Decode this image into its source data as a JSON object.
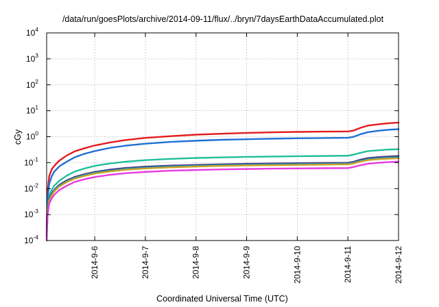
{
  "chart_data": {
    "type": "line",
    "title": "/data/run/goesPlots/archive/2014-09-11/flux/../bryn/7daysEarthDataAccumulated.plot",
    "xlabel": "Coordinated Universal Time (UTC)",
    "ylabel": "cGy",
    "y_scale": "log",
    "ylim": [
      0.0001,
      10000
    ],
    "xlim": [
      -0.95,
      6
    ],
    "y_ticks": [
      {
        "value": 0.0001,
        "base": "10",
        "exp": "-4"
      },
      {
        "value": 0.001,
        "base": "10",
        "exp": "-3"
      },
      {
        "value": 0.01,
        "base": "10",
        "exp": "-2"
      },
      {
        "value": 0.1,
        "base": "10",
        "exp": "-1"
      },
      {
        "value": 1,
        "base": "10",
        "exp": "0"
      },
      {
        "value": 10,
        "base": "10",
        "exp": "1"
      },
      {
        "value": 100,
        "base": "10",
        "exp": "2"
      },
      {
        "value": 1000,
        "base": "10",
        "exp": "3"
      },
      {
        "value": 10000,
        "base": "10",
        "exp": "4"
      }
    ],
    "x_ticks": [
      {
        "value": 0,
        "label": "2014-9-6"
      },
      {
        "value": 1,
        "label": "2014-9-7"
      },
      {
        "value": 2,
        "label": "2014-9-8"
      },
      {
        "value": 3,
        "label": "2014-9-9"
      },
      {
        "value": 4,
        "label": "2014-9-10"
      },
      {
        "value": 5,
        "label": "2014-9-11"
      },
      {
        "value": 6,
        "label": "2014-9-12"
      }
    ],
    "grid": true,
    "legend": "none",
    "series": [
      {
        "color": "#e41a1c",
        "points": [
          [
            -0.95,
            0.0003
          ],
          [
            -0.93,
            0.008
          ],
          [
            -0.9,
            0.03
          ],
          [
            -0.85,
            0.055
          ],
          [
            -0.8,
            0.075
          ],
          [
            -0.7,
            0.12
          ],
          [
            -0.55,
            0.19
          ],
          [
            -0.4,
            0.27
          ],
          [
            -0.2,
            0.36
          ],
          [
            0,
            0.46
          ],
          [
            0.3,
            0.6
          ],
          [
            0.6,
            0.74
          ],
          [
            1,
            0.9
          ],
          [
            1.5,
            1.05
          ],
          [
            2,
            1.2
          ],
          [
            2.5,
            1.3
          ],
          [
            3,
            1.4
          ],
          [
            3.5,
            1.48
          ],
          [
            4,
            1.53
          ],
          [
            4.5,
            1.57
          ],
          [
            5,
            1.6
          ],
          [
            5.1,
            1.7
          ],
          [
            5.25,
            2.2
          ],
          [
            5.4,
            2.7
          ],
          [
            5.6,
            3.0
          ],
          [
            5.8,
            3.3
          ],
          [
            6,
            3.5
          ]
        ]
      },
      {
        "color": "#1f6fd6",
        "points": [
          [
            -0.95,
            0.0002
          ],
          [
            -0.93,
            0.004
          ],
          [
            -0.9,
            0.015
          ],
          [
            -0.85,
            0.03
          ],
          [
            -0.8,
            0.045
          ],
          [
            -0.7,
            0.072
          ],
          [
            -0.55,
            0.11
          ],
          [
            -0.4,
            0.16
          ],
          [
            -0.2,
            0.22
          ],
          [
            0,
            0.28
          ],
          [
            0.3,
            0.37
          ],
          [
            0.6,
            0.45
          ],
          [
            1,
            0.54
          ],
          [
            1.5,
            0.63
          ],
          [
            2,
            0.7
          ],
          [
            2.5,
            0.76
          ],
          [
            3,
            0.8
          ],
          [
            3.5,
            0.84
          ],
          [
            4,
            0.87
          ],
          [
            4.5,
            0.89
          ],
          [
            5,
            0.91
          ],
          [
            5.1,
            0.98
          ],
          [
            5.25,
            1.25
          ],
          [
            5.4,
            1.5
          ],
          [
            5.6,
            1.7
          ],
          [
            5.8,
            1.85
          ],
          [
            6,
            1.95
          ]
        ]
      },
      {
        "color": "#1fbf9a",
        "points": [
          [
            -0.95,
            0.0002
          ],
          [
            -0.93,
            0.002
          ],
          [
            -0.9,
            0.005
          ],
          [
            -0.85,
            0.009
          ],
          [
            -0.8,
            0.013
          ],
          [
            -0.7,
            0.02
          ],
          [
            -0.55,
            0.032
          ],
          [
            -0.4,
            0.045
          ],
          [
            -0.2,
            0.06
          ],
          [
            0,
            0.075
          ],
          [
            0.3,
            0.093
          ],
          [
            0.6,
            0.108
          ],
          [
            1,
            0.125
          ],
          [
            1.5,
            0.14
          ],
          [
            2,
            0.152
          ],
          [
            2.5,
            0.16
          ],
          [
            3,
            0.167
          ],
          [
            3.5,
            0.172
          ],
          [
            4,
            0.177
          ],
          [
            4.5,
            0.181
          ],
          [
            5,
            0.185
          ],
          [
            5.1,
            0.2
          ],
          [
            5.25,
            0.24
          ],
          [
            5.4,
            0.28
          ],
          [
            5.6,
            0.3
          ],
          [
            5.8,
            0.32
          ],
          [
            6,
            0.33
          ]
        ]
      },
      {
        "color": "#3e2a7a",
        "points": [
          [
            -0.95,
            0.00015
          ],
          [
            -0.93,
            0.0015
          ],
          [
            -0.9,
            0.004
          ],
          [
            -0.85,
            0.0065
          ],
          [
            -0.8,
            0.009
          ],
          [
            -0.7,
            0.014
          ],
          [
            -0.55,
            0.021
          ],
          [
            -0.4,
            0.028
          ],
          [
            -0.2,
            0.036
          ],
          [
            0,
            0.044
          ],
          [
            0.3,
            0.054
          ],
          [
            0.6,
            0.062
          ],
          [
            1,
            0.07
          ],
          [
            1.5,
            0.077
          ],
          [
            2,
            0.082
          ],
          [
            2.5,
            0.086
          ],
          [
            3,
            0.09
          ],
          [
            3.5,
            0.093
          ],
          [
            4,
            0.095
          ],
          [
            4.5,
            0.097
          ],
          [
            5,
            0.099
          ],
          [
            5.1,
            0.107
          ],
          [
            5.25,
            0.13
          ],
          [
            5.4,
            0.15
          ],
          [
            5.6,
            0.163
          ],
          [
            5.8,
            0.172
          ],
          [
            6,
            0.18
          ]
        ]
      },
      {
        "color": "#2f8fb0",
        "points": [
          [
            -0.95,
            0.00015
          ],
          [
            -0.93,
            0.0014
          ],
          [
            -0.9,
            0.0037
          ],
          [
            -0.85,
            0.006
          ],
          [
            -0.8,
            0.0085
          ],
          [
            -0.7,
            0.013
          ],
          [
            -0.55,
            0.0195
          ],
          [
            -0.4,
            0.026
          ],
          [
            -0.2,
            0.034
          ],
          [
            0,
            0.041
          ],
          [
            0.3,
            0.05
          ],
          [
            0.6,
            0.058
          ],
          [
            1,
            0.065
          ],
          [
            1.5,
            0.072
          ],
          [
            2,
            0.077
          ],
          [
            2.5,
            0.081
          ],
          [
            3,
            0.084
          ],
          [
            3.5,
            0.087
          ],
          [
            4,
            0.089
          ],
          [
            4.5,
            0.091
          ],
          [
            5,
            0.093
          ],
          [
            5.1,
            0.1
          ],
          [
            5.25,
            0.12
          ],
          [
            5.4,
            0.138
          ],
          [
            5.6,
            0.15
          ],
          [
            5.8,
            0.158
          ],
          [
            6,
            0.165
          ]
        ]
      },
      {
        "color": "#c9a227",
        "points": [
          [
            -0.95,
            0.00014
          ],
          [
            -0.93,
            0.0013
          ],
          [
            -0.9,
            0.0034
          ],
          [
            -0.85,
            0.0055
          ],
          [
            -0.8,
            0.0078
          ],
          [
            -0.7,
            0.012
          ],
          [
            -0.55,
            0.018
          ],
          [
            -0.4,
            0.024
          ],
          [
            -0.2,
            0.031
          ],
          [
            0,
            0.038
          ],
          [
            0.3,
            0.046
          ],
          [
            0.6,
            0.053
          ],
          [
            1,
            0.06
          ],
          [
            1.5,
            0.066
          ],
          [
            2,
            0.071
          ],
          [
            2.5,
            0.075
          ],
          [
            3,
            0.078
          ],
          [
            3.5,
            0.08
          ],
          [
            4,
            0.082
          ],
          [
            4.5,
            0.084
          ],
          [
            5,
            0.086
          ],
          [
            5.1,
            0.092
          ],
          [
            5.25,
            0.11
          ],
          [
            5.4,
            0.126
          ],
          [
            5.6,
            0.136
          ],
          [
            5.8,
            0.143
          ],
          [
            6,
            0.148
          ]
        ]
      },
      {
        "color": "#e83be0",
        "points": [
          [
            -0.95,
            0.0001
          ],
          [
            -0.93,
            0.001
          ],
          [
            -0.9,
            0.0026
          ],
          [
            -0.85,
            0.0042
          ],
          [
            -0.8,
            0.0058
          ],
          [
            -0.7,
            0.0088
          ],
          [
            -0.55,
            0.013
          ],
          [
            -0.4,
            0.018
          ],
          [
            -0.2,
            0.023
          ],
          [
            0,
            0.028
          ],
          [
            0.3,
            0.034
          ],
          [
            0.6,
            0.039
          ],
          [
            1,
            0.044
          ],
          [
            1.5,
            0.049
          ],
          [
            2,
            0.052
          ],
          [
            2.5,
            0.055
          ],
          [
            3,
            0.057
          ],
          [
            3.5,
            0.059
          ],
          [
            4,
            0.06
          ],
          [
            4.5,
            0.061
          ],
          [
            5,
            0.062
          ],
          [
            5.1,
            0.067
          ],
          [
            5.25,
            0.08
          ],
          [
            5.4,
            0.091
          ],
          [
            5.6,
            0.099
          ],
          [
            5.8,
            0.105
          ],
          [
            6,
            0.11
          ]
        ]
      }
    ]
  }
}
